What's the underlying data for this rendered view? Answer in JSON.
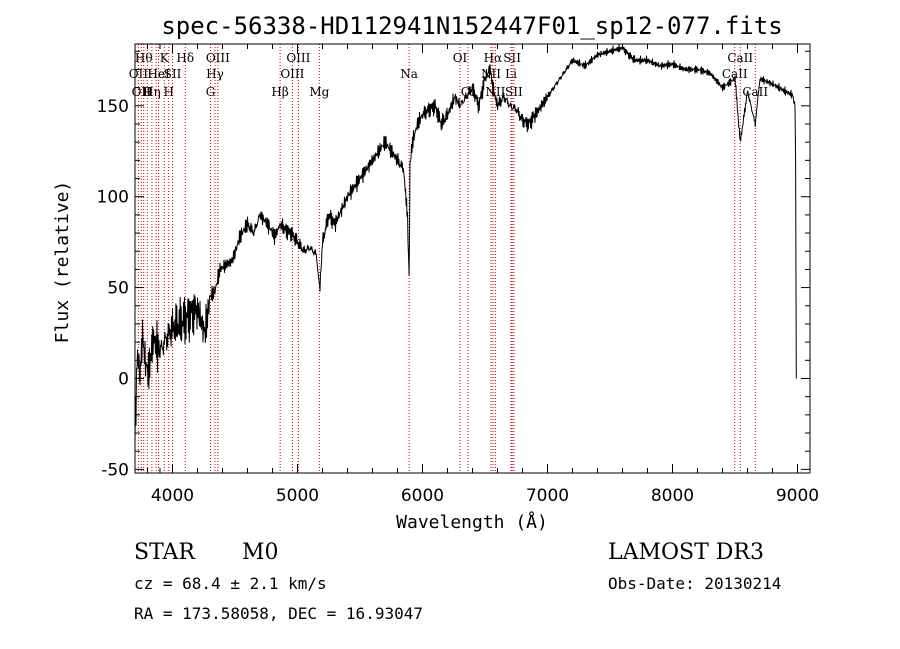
{
  "chart_data": {
    "type": "line",
    "title": "spec-56338-HD112941N152447F01_sp12-077.fits",
    "xlabel": "Wavelength (Å)",
    "ylabel": "Flux (relative)",
    "xlim": [
      3700,
      9100
    ],
    "ylim": [
      -52,
      184
    ],
    "xticks": [
      4000,
      5000,
      6000,
      7000,
      8000,
      9000
    ],
    "yticks": [
      -50,
      0,
      50,
      100,
      150
    ],
    "xtick_labels": [
      "4000",
      "5000",
      "6000",
      "7000",
      "8000",
      "9000"
    ],
    "ytick_labels": [
      "-50",
      "0",
      "50",
      "100",
      "150"
    ],
    "series": [
      {
        "name": "spectrum",
        "x": [
          3700,
          3720,
          3740,
          3760,
          3780,
          3800,
          3830,
          3860,
          3900,
          3950,
          4000,
          4050,
          4100,
          4150,
          4200,
          4260,
          4300,
          4340,
          4380,
          4420,
          4480,
          4540,
          4600,
          4650,
          4700,
          4760,
          4820,
          4861,
          4900,
          4950,
          5000,
          5050,
          5100,
          5150,
          5180,
          5200,
          5250,
          5300,
          5400,
          5500,
          5600,
          5700,
          5800,
          5850,
          5880,
          5893,
          5900,
          5920,
          5960,
          6000,
          6050,
          6100,
          6150,
          6200,
          6260,
          6300,
          6350,
          6400,
          6450,
          6500,
          6540,
          6563,
          6600,
          6650,
          6700,
          6750,
          6800,
          6850,
          6900,
          7000,
          7050,
          7100,
          7150,
          7200,
          7300,
          7400,
          7500,
          7600,
          7650,
          7700,
          7800,
          7900,
          8000,
          8100,
          8200,
          8300,
          8400,
          8500,
          8542,
          8600,
          8662,
          8700,
          8800,
          8900,
          8960,
          8980,
          8985,
          8990
        ],
        "y": [
          -30,
          15,
          0,
          25,
          10,
          5,
          15,
          20,
          15,
          22,
          28,
          30,
          32,
          36,
          38,
          25,
          45,
          48,
          60,
          62,
          65,
          78,
          85,
          80,
          90,
          85,
          78,
          85,
          82,
          80,
          75,
          70,
          72,
          68,
          50,
          75,
          90,
          85,
          100,
          110,
          120,
          130,
          120,
          115,
          88,
          55,
          118,
          130,
          140,
          145,
          148,
          150,
          140,
          145,
          155,
          150,
          155,
          160,
          150,
          165,
          170,
          160,
          150,
          155,
          150,
          148,
          142,
          140,
          145,
          155,
          160,
          165,
          170,
          175,
          172,
          178,
          180,
          182,
          178,
          175,
          175,
          172,
          173,
          170,
          170,
          168,
          160,
          165,
          130,
          158,
          140,
          165,
          162,
          158,
          156,
          150,
          120,
          0
        ]
      }
    ],
    "line_markers": [
      {
        "wavelength": 3727,
        "label": "OII",
        "row": 2
      },
      {
        "wavelength": 3750,
        "label": "OII",
        "row": 3
      },
      {
        "wavelength": 3770,
        "label": "Hθ",
        "row": 1
      },
      {
        "wavelength": 3798,
        "label": "H",
        "row": 3
      },
      {
        "wavelength": 3835,
        "label": "Hη",
        "row": 3
      },
      {
        "wavelength": 3869,
        "label": "He",
        "row": 2
      },
      {
        "wavelength": 3889,
        "label": "HeI",
        "row": 2
      },
      {
        "wavelength": 3934,
        "label": "K",
        "row": 1
      },
      {
        "wavelength": 3970,
        "label": "H",
        "row": 3
      },
      {
        "wavelength": 4000,
        "label": "SII",
        "row": 2
      },
      {
        "wavelength": 4102,
        "label": "Hδ",
        "row": 1
      },
      {
        "wavelength": 4304,
        "label": "G",
        "row": 3
      },
      {
        "wavelength": 4340,
        "label": "Hγ",
        "row": 2
      },
      {
        "wavelength": 4363,
        "label": "OIII",
        "row": 1
      },
      {
        "wavelength": 4861,
        "label": "Hβ",
        "row": 3
      },
      {
        "wavelength": 4959,
        "label": "OIII",
        "row": 2
      },
      {
        "wavelength": 5007,
        "label": "OIII",
        "row": 1
      },
      {
        "wavelength": 5175,
        "label": "Mg",
        "row": 3
      },
      {
        "wavelength": 5893,
        "label": "Na",
        "row": 2
      },
      {
        "wavelength": 6300,
        "label": "OI",
        "row": 1
      },
      {
        "wavelength": 6364,
        "label": "OI",
        "row": 3
      },
      {
        "wavelength": 6548,
        "label": "NII",
        "row": 2
      },
      {
        "wavelength": 6563,
        "label": "Hα",
        "row": 1
      },
      {
        "wavelength": 6583,
        "label": "NII",
        "row": 3
      },
      {
        "wavelength": 6708,
        "label": "Li",
        "row": 2
      },
      {
        "wavelength": 6717,
        "label": "SII",
        "row": 1
      },
      {
        "wavelength": 6731,
        "label": "SII",
        "row": 3
      },
      {
        "wavelength": 8498,
        "label": "CaII",
        "row": 2
      },
      {
        "wavelength": 8542,
        "label": "CaII",
        "row": 1
      },
      {
        "wavelength": 8662,
        "label": "CaII",
        "row": 3
      }
    ]
  },
  "info": {
    "object_class": "STAR",
    "subclass": "M0",
    "survey": "LAMOST DR3",
    "redshift_line": "cz = 68.4 ± 2.1 km/s",
    "obs_date": "Obs-Date: 20130214",
    "coords": "RA = 173.58058, DEC =  16.93047"
  }
}
